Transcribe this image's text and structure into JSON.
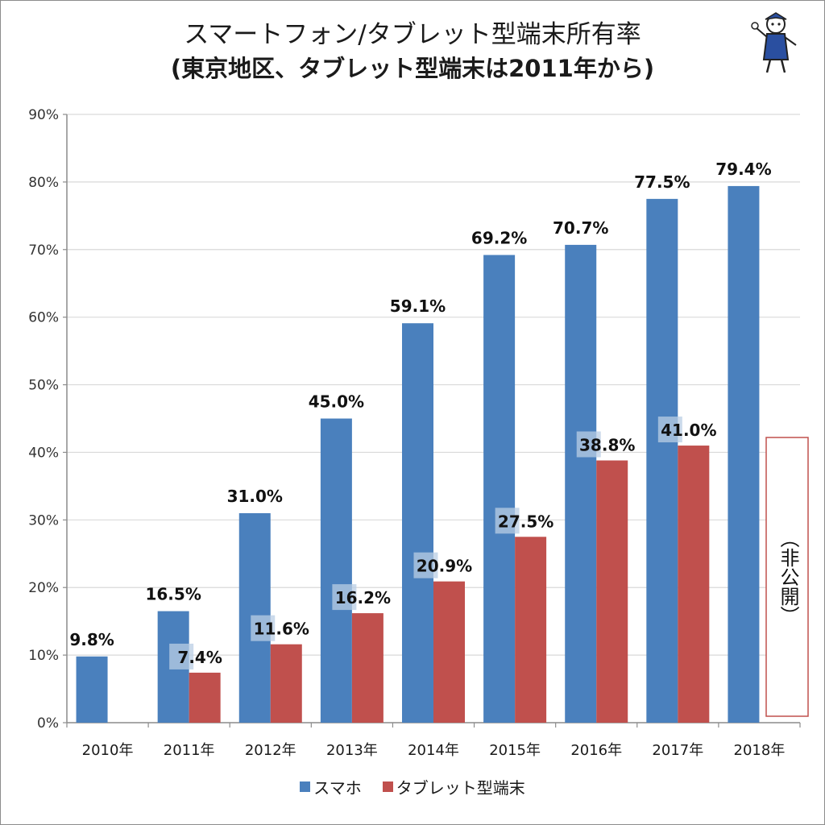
{
  "title_line1": "スマートフォン/タブレット型端末所有率",
  "title_line2": "(東京地区、タブレット型端末は2011年から)",
  "note_label": "（非公開）",
  "colors": {
    "smartphone": "#4a80bd",
    "tablet": "#c0504d",
    "grid": "#d9d9d9",
    "label_bg": "#b9cde4"
  },
  "chart_data": {
    "type": "bar",
    "categories": [
      "2010年",
      "2011年",
      "2012年",
      "2013年",
      "2014年",
      "2015年",
      "2016年",
      "2017年",
      "2018年"
    ],
    "series": [
      {
        "name": "スマホ",
        "values": [
          9.8,
          16.5,
          31.0,
          45.0,
          59.1,
          69.2,
          70.7,
          77.5,
          79.4
        ],
        "labels": [
          "9.8%",
          "16.5%",
          "31.0%",
          "45.0%",
          "59.1%",
          "69.2%",
          "70.7%",
          "77.5%",
          "79.4%"
        ]
      },
      {
        "name": "タブレット型端末",
        "values": [
          null,
          7.4,
          11.6,
          16.2,
          20.9,
          27.5,
          38.8,
          41.0,
          null
        ],
        "labels": [
          "",
          "7.4%",
          "11.6%",
          "16.2%",
          "20.9%",
          "27.5%",
          "38.8%",
          "41.0%",
          ""
        ]
      }
    ],
    "ylim": [
      0,
      90
    ],
    "yticks": [
      "0%",
      "10%",
      "20%",
      "30%",
      "40%",
      "50%",
      "60%",
      "70%",
      "80%",
      "90%"
    ],
    "grid": true,
    "legend": "bottom"
  }
}
